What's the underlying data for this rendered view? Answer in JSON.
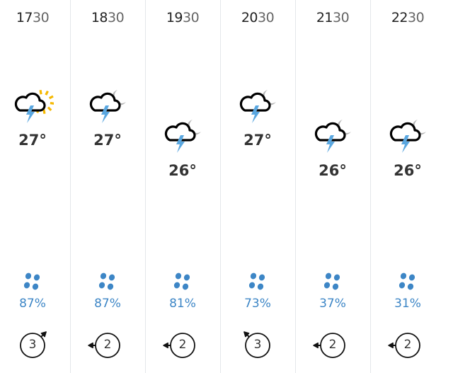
{
  "colors": {
    "cloud": "#000000",
    "lightning": "#5aa7e0",
    "sun": "#f5b800",
    "moon": "#b5b5b5",
    "rain": "#3d86c6",
    "divider": "#e4e7ea"
  },
  "hours": [
    {
      "time_hour": "17",
      "time_min": "30",
      "icon": "thunderstorm-sun-icon",
      "temp": "27°",
      "rain_pct": "87%",
      "wind_speed": "3",
      "wind_dir_deg": 45,
      "elevated": true
    },
    {
      "time_hour": "18",
      "time_min": "30",
      "icon": "thunderstorm-moon-icon",
      "temp": "27°",
      "rain_pct": "87%",
      "wind_speed": "2",
      "wind_dir_deg": 270,
      "elevated": true
    },
    {
      "time_hour": "19",
      "time_min": "30",
      "icon": "thunderstorm-moon-icon",
      "temp": "26°",
      "rain_pct": "81%",
      "wind_speed": "2",
      "wind_dir_deg": 270,
      "elevated": false
    },
    {
      "time_hour": "20",
      "time_min": "30",
      "icon": "thunderstorm-moon-icon",
      "temp": "27°",
      "rain_pct": "73%",
      "wind_speed": "3",
      "wind_dir_deg": 315,
      "elevated": true
    },
    {
      "time_hour": "21",
      "time_min": "30",
      "icon": "thunderstorm-moon-icon",
      "temp": "26°",
      "rain_pct": "37%",
      "wind_speed": "2",
      "wind_dir_deg": 270,
      "elevated": false
    },
    {
      "time_hour": "22",
      "time_min": "30",
      "icon": "thunderstorm-moon-icon",
      "temp": "26°",
      "rain_pct": "31%",
      "wind_speed": "2",
      "wind_dir_deg": 270,
      "elevated": false
    }
  ]
}
